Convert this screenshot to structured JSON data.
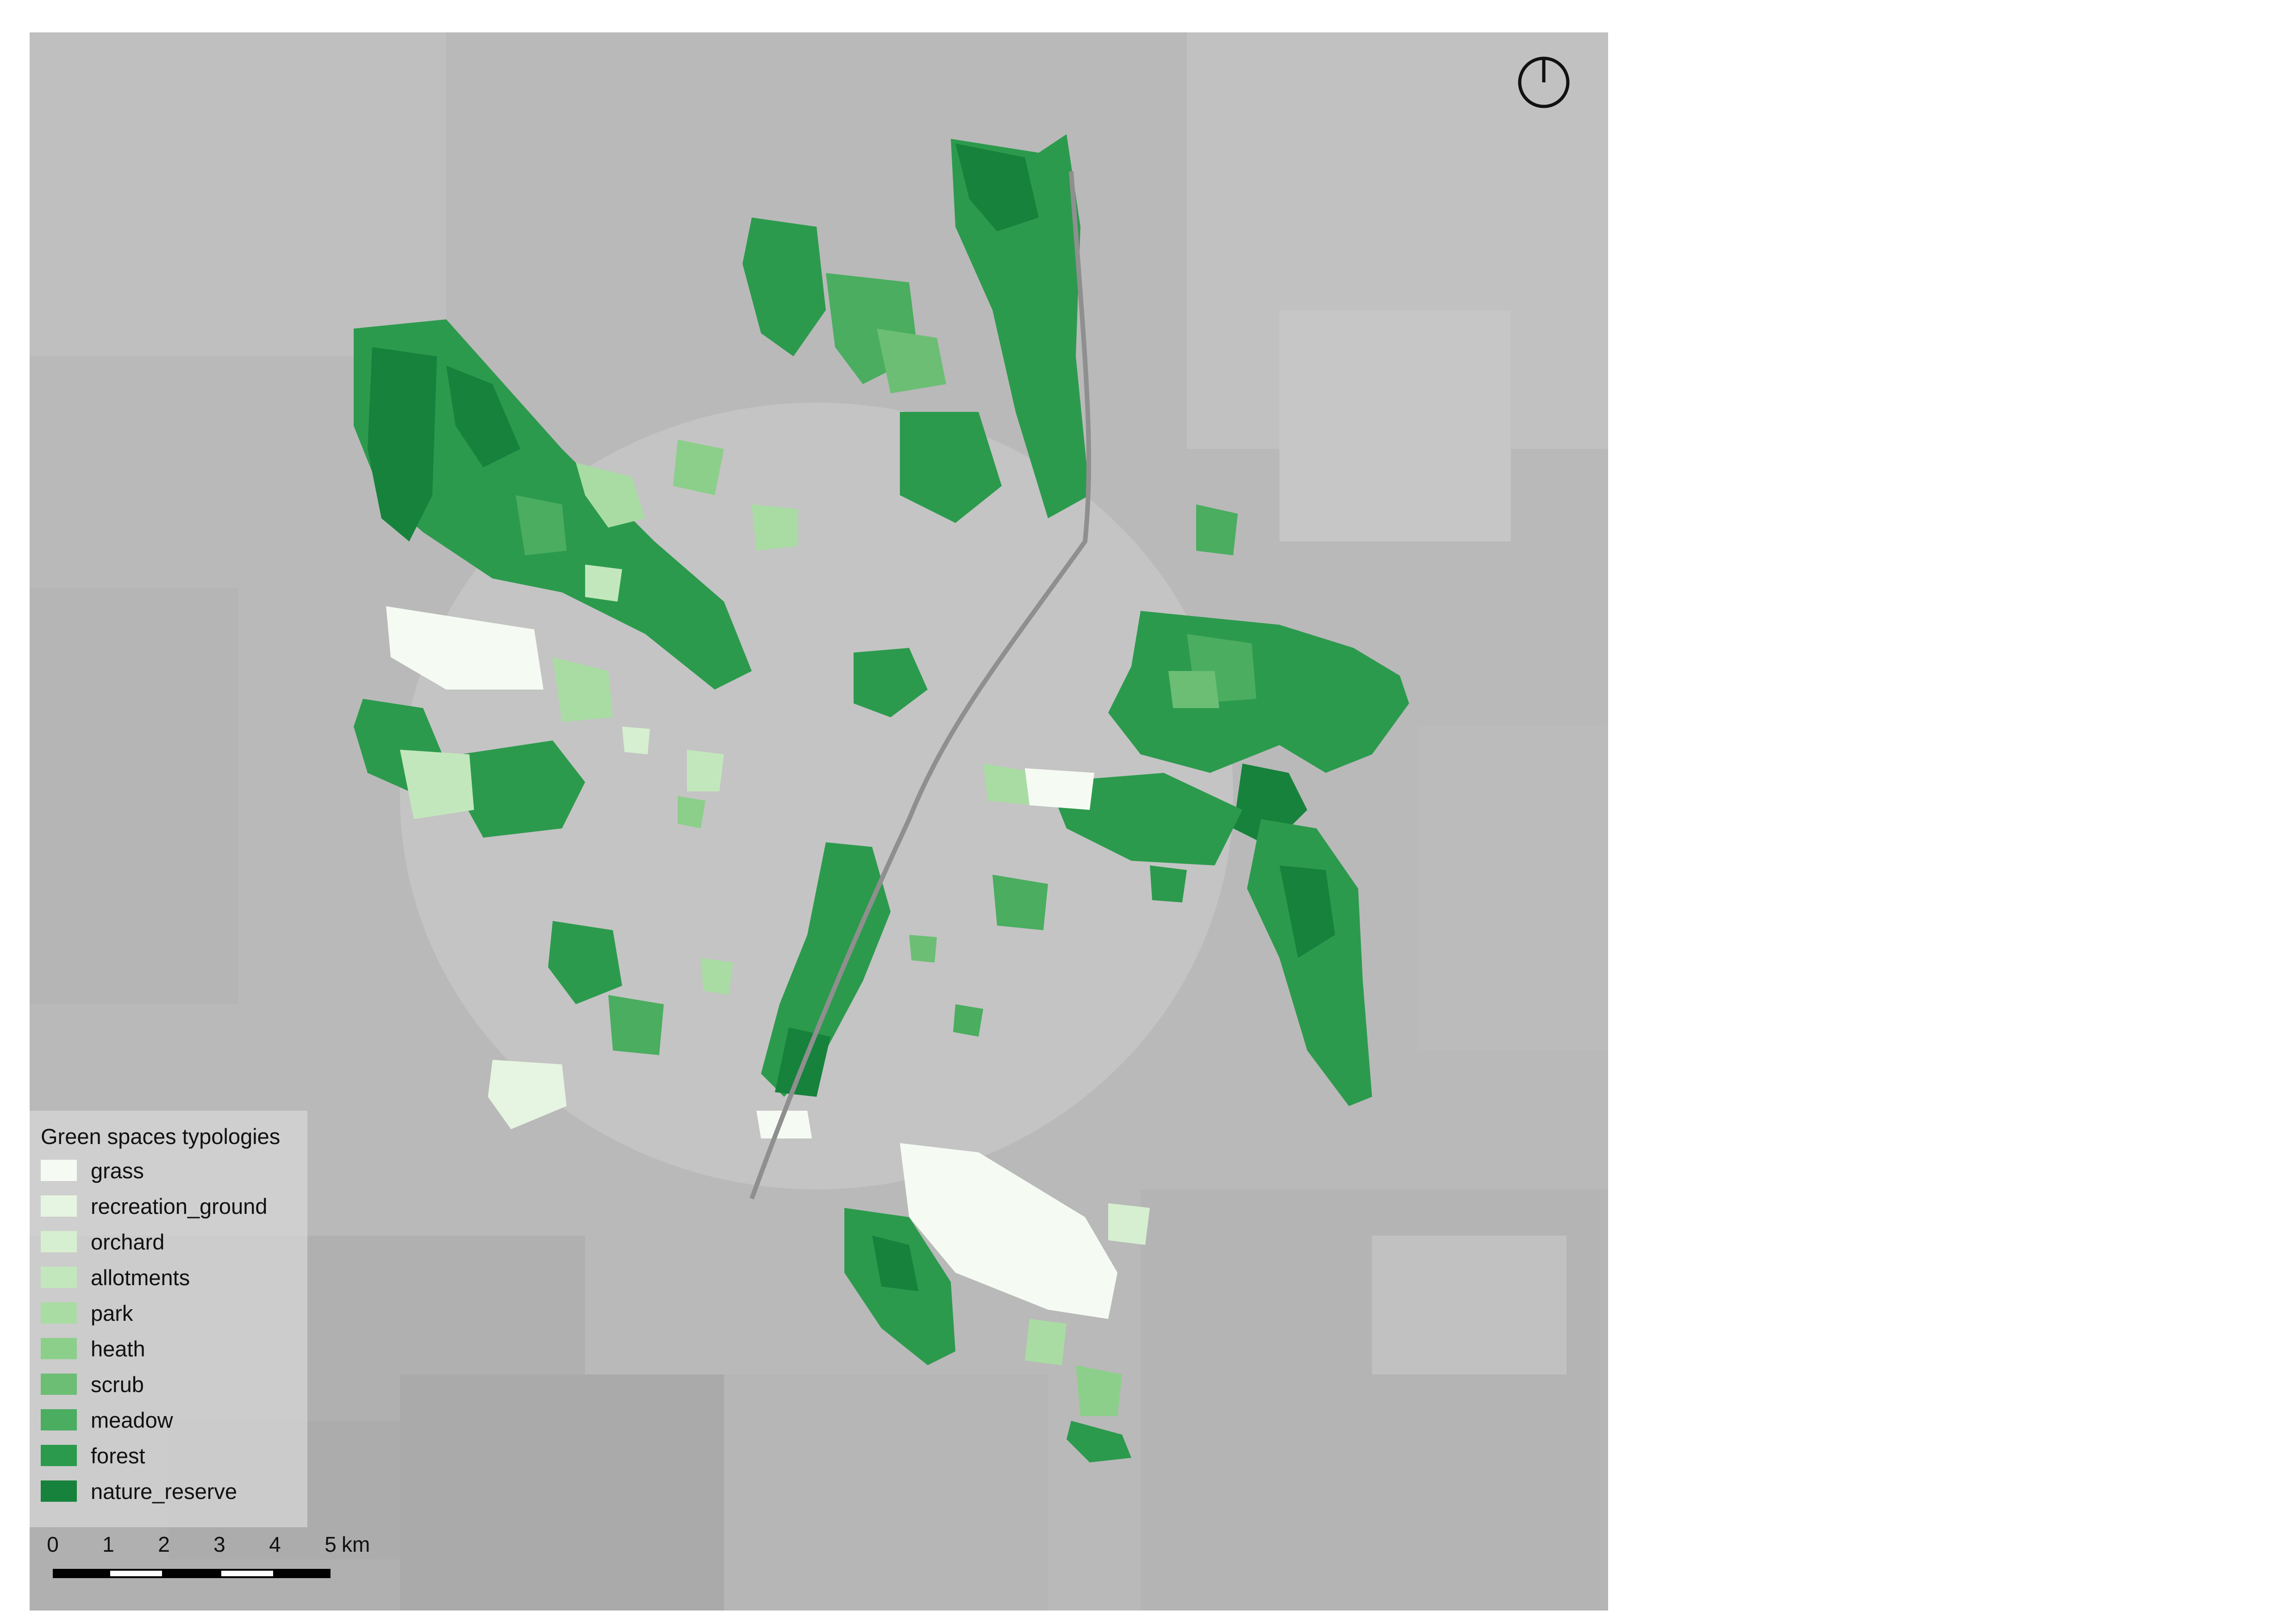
{
  "legend": {
    "title": "Green spaces typologies",
    "items": [
      {
        "label": "grass",
        "color": "#f5fbf3"
      },
      {
        "label": "recreation_ground",
        "color": "#e6f5e1"
      },
      {
        "label": "orchard",
        "color": "#d6efd0"
      },
      {
        "label": "allotments",
        "color": "#c3e7bc"
      },
      {
        "label": "park",
        "color": "#a9dca3"
      },
      {
        "label": "heath",
        "color": "#8ccf8a"
      },
      {
        "label": "scrub",
        "color": "#6cbe74"
      },
      {
        "label": "meadow",
        "color": "#4aad5f"
      },
      {
        "label": "forest",
        "color": "#2c9a4d"
      },
      {
        "label": "nature_reserve",
        "color": "#17823c"
      }
    ]
  },
  "scale_bar": {
    "ticks": [
      "0",
      "1",
      "2",
      "3",
      "4",
      "5"
    ],
    "unit": "km"
  },
  "north_arrow": {
    "icon": "north-arrow-icon"
  }
}
